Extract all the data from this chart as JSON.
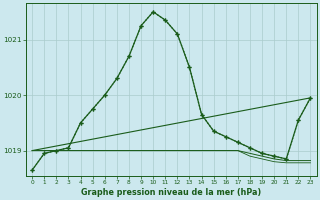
{
  "title": "Graphe pression niveau de la mer (hPa)",
  "x_ticks": [
    0,
    1,
    2,
    3,
    4,
    5,
    6,
    7,
    8,
    9,
    10,
    11,
    12,
    13,
    14,
    15,
    16,
    17,
    18,
    19,
    20,
    21,
    22,
    23
  ],
  "ylim": [
    1018.55,
    1021.65
  ],
  "yticks": [
    1019,
    1020,
    1021
  ],
  "bg_color": "#cce8ee",
  "grid_color": "#aacccc",
  "line_color": "#1a5c1a",
  "series_main": [
    1018.65,
    1018.95,
    1019.0,
    1019.05,
    1019.5,
    1019.75,
    1020.0,
    1020.3,
    1020.7,
    1021.25,
    1021.5,
    1021.35,
    1021.1,
    1020.5,
    1019.65,
    1019.35,
    1019.25,
    1019.15,
    1019.05,
    1018.95,
    1018.9,
    1018.85,
    1019.55,
    1019.95
  ],
  "series_dotted": [
    1018.65,
    1018.95,
    1019.0,
    1019.05,
    1019.5,
    1019.75,
    1020.0,
    1020.3,
    1020.7,
    1021.25,
    1021.5,
    1021.35,
    1021.1,
    1020.5,
    1019.65,
    1019.35,
    1019.25,
    1019.15,
    1019.05,
    1018.95,
    1018.9,
    1018.85,
    1019.55,
    1019.95
  ],
  "series_diag": [
    1019.0,
    1019.0,
    1019.0,
    1019.0,
    1019.0,
    1019.0,
    1019.0,
    1019.0,
    1019.0,
    1019.0,
    1019.0,
    1019.0,
    1019.0,
    1019.0,
    1019.0,
    1019.0,
    1019.0,
    1019.0,
    1019.0,
    1019.0,
    1019.0,
    1019.0,
    1019.95,
    1019.95
  ],
  "series_flat1": [
    1019.0,
    1019.0,
    1019.0,
    1019.0,
    1019.0,
    1019.0,
    1019.0,
    1019.0,
    1019.0,
    1019.0,
    1019.0,
    1019.0,
    1019.0,
    1019.0,
    1019.0,
    1019.0,
    1019.0,
    1019.0,
    1018.95,
    1018.9,
    1018.85,
    1018.82,
    1018.82,
    1018.82
  ],
  "series_flat2": [
    1019.0,
    1019.0,
    1019.0,
    1019.0,
    1019.0,
    1019.0,
    1019.0,
    1019.0,
    1019.0,
    1019.0,
    1019.0,
    1019.0,
    1019.0,
    1019.0,
    1019.0,
    1019.0,
    1019.0,
    1019.0,
    1018.9,
    1018.85,
    1018.8,
    1018.78,
    1018.78,
    1018.78
  ]
}
